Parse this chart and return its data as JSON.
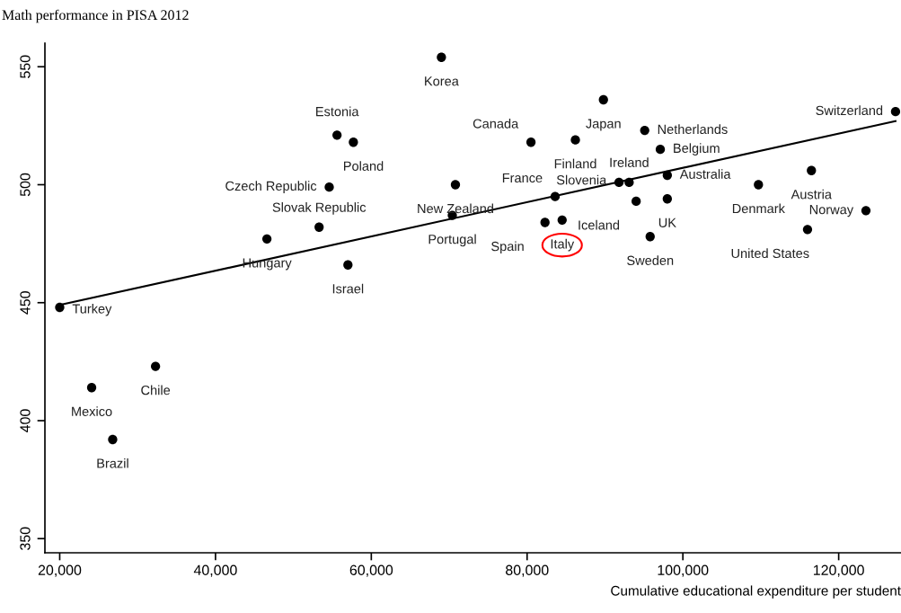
{
  "chart_data": {
    "type": "scatter",
    "title": "Math performance in PISA 2012",
    "xlabel": "Cumulative educational expenditure per student",
    "x": [
      20000,
      24100,
      26800,
      32300,
      46600,
      53300,
      54600,
      55600,
      57700,
      57000,
      69000,
      70800,
      70400,
      80500,
      82300,
      84500,
      83600,
      86200,
      89800,
      91800,
      93100,
      94000,
      95100,
      95800,
      97100,
      98000,
      98000,
      109700,
      116000,
      116500,
      123500,
      127300
    ],
    "series": [
      {
        "color": "#000000",
        "marker": "circle",
        "values": [
          448,
          414,
          392,
          423,
          477,
          482,
          499,
          521,
          518,
          466,
          554,
          500,
          487,
          518,
          484,
          485,
          495,
          519,
          536,
          501,
          501,
          493,
          523,
          478,
          515,
          504,
          494,
          500,
          481,
          506,
          489,
          531
        ]
      },
      {
        "type": "line",
        "color": "#000000",
        "marker": "none",
        "line_style": "solid",
        "x": [
          20000,
          127300
        ],
        "values": [
          449,
          527
        ]
      }
    ],
    "xlim": [
      18100,
      128000
    ],
    "ylim": [
      344,
      560
    ],
    "xticks": [
      {
        "value": 20000,
        "label": "20,000"
      },
      {
        "value": 40000,
        "label": "40,000"
      },
      {
        "value": 60000,
        "label": "60,000"
      },
      {
        "value": 80000,
        "label": "80,000"
      },
      {
        "value": 100000,
        "label": "100,000"
      },
      {
        "value": 120000,
        "label": "120,000"
      }
    ],
    "yticks": [
      350,
      400,
      450,
      500,
      550
    ],
    "grid": false,
    "legend": false,
    "annotations": [
      {
        "text": "Turkey",
        "x": 20000,
        "y": 448
      },
      {
        "text": "Mexico",
        "x": 24100,
        "y": 414
      },
      {
        "text": "Brazil",
        "x": 26800,
        "y": 392
      },
      {
        "text": "Chile",
        "x": 32300,
        "y": 423
      },
      {
        "text": "Hungary",
        "x": 46600,
        "y": 477
      },
      {
        "text": "Slovak Republic",
        "x": 53300,
        "y": 482
      },
      {
        "text": "Czech Republic",
        "x": 54600,
        "y": 499
      },
      {
        "text": "Estonia",
        "x": 55600,
        "y": 521
      },
      {
        "text": "Poland",
        "x": 57700,
        "y": 518
      },
      {
        "text": "Israel",
        "x": 57000,
        "y": 466
      },
      {
        "text": "Korea",
        "x": 69000,
        "y": 554
      },
      {
        "text": "New Zealand",
        "x": 70800,
        "y": 500
      },
      {
        "text": "Portugal",
        "x": 70400,
        "y": 487
      },
      {
        "text": "Canada",
        "x": 80500,
        "y": 518
      },
      {
        "text": "Spain",
        "x": 82300,
        "y": 484
      },
      {
        "text": "Italy",
        "x": 84500,
        "y": 485
      },
      {
        "text": "France",
        "x": 83600,
        "y": 495
      },
      {
        "text": "Finland",
        "x": 86200,
        "y": 519
      },
      {
        "text": "Japan",
        "x": 89800,
        "y": 536
      },
      {
        "text": "Slovenia",
        "x": 91800,
        "y": 501
      },
      {
        "text": "Ireland",
        "x": 93100,
        "y": 501
      },
      {
        "text": "Iceland",
        "x": 94000,
        "y": 493
      },
      {
        "text": "Netherlands",
        "x": 95100,
        "y": 523
      },
      {
        "text": "Sweden",
        "x": 95800,
        "y": 478
      },
      {
        "text": "Belgium",
        "x": 97100,
        "y": 515
      },
      {
        "text": "Australia",
        "x": 98000,
        "y": 504
      },
      {
        "text": "UK",
        "x": 98000,
        "y": 494
      },
      {
        "text": "Denmark",
        "x": 109700,
        "y": 500
      },
      {
        "text": "United States",
        "x": 116000,
        "y": 481
      },
      {
        "text": "Austria",
        "x": 116500,
        "y": 506
      },
      {
        "text": "Norway",
        "x": 123500,
        "y": 489
      },
      {
        "text": "Switzerland",
        "x": 127300,
        "y": 531
      }
    ]
  }
}
